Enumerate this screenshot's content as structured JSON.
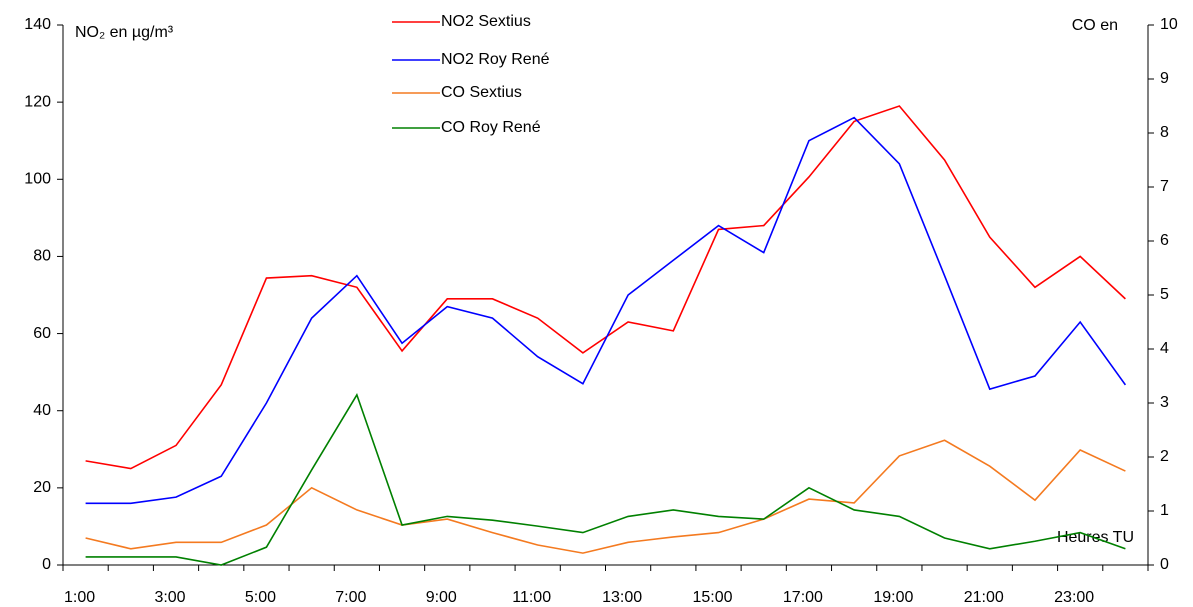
{
  "chart_data": {
    "type": "line",
    "y_label": "NO₂ en µg/m³",
    "y2_label": "CO en",
    "x_label": "Heures TU",
    "categories": [
      "1:00",
      null,
      "3:00",
      null,
      "5:00",
      null,
      "7:00",
      null,
      "9:00",
      null,
      "11:00",
      null,
      "13:00",
      null,
      "15:00",
      null,
      "17:00",
      null,
      "19:00",
      null,
      "21:00",
      null,
      "23:00",
      null
    ],
    "ylim": [
      0,
      140
    ],
    "yticks": [
      0,
      20,
      40,
      60,
      80,
      100,
      120,
      140
    ],
    "y2lim": [
      0,
      10
    ],
    "y2ticks": [
      0,
      1,
      2,
      3,
      4,
      5,
      6,
      7,
      8,
      9,
      10
    ],
    "grid": false,
    "series": [
      {
        "name": "NO2 Sextius",
        "color": "#ff0000",
        "values": [
          27,
          25,
          31,
          46.7,
          74.4,
          75,
          72,
          55.5,
          69,
          69,
          64,
          55,
          63,
          60.7,
          87,
          88,
          100.6,
          115,
          119,
          105,
          85,
          72,
          80,
          69
        ]
      },
      {
        "name": "NO2 Roy René",
        "color": "#0000ff",
        "values": [
          16,
          16,
          17.6,
          23,
          42,
          64,
          75,
          57.5,
          67,
          64,
          54,
          47,
          70,
          79,
          88,
          81,
          110,
          116,
          104,
          75,
          45.6,
          49,
          63,
          46.7
        ]
      },
      {
        "name": "CO Sextius",
        "color": "#f47a20",
        "axis": "y2",
        "values": [
          0.5,
          0.3,
          0.42,
          0.42,
          0.74,
          1.43,
          1.02,
          0.74,
          0.85,
          0.6,
          0.37,
          0.22,
          0.42,
          0.52,
          0.6,
          0.85,
          1.22,
          1.15,
          2.02,
          2.31,
          1.83,
          1.2,
          2.13,
          1.74
        ]
      },
      {
        "name": "CO Roy René",
        "color": "#008000",
        "axis": "y2",
        "values": [
          0.15,
          0.15,
          0.15,
          0,
          0.33,
          1.76,
          3.15,
          0.74,
          0.9,
          0.83,
          0.72,
          0.6,
          0.9,
          1.02,
          0.9,
          0.85,
          1.43,
          1.02,
          0.9,
          0.5,
          0.3,
          0.44,
          0.6,
          0.3
        ]
      }
    ]
  }
}
